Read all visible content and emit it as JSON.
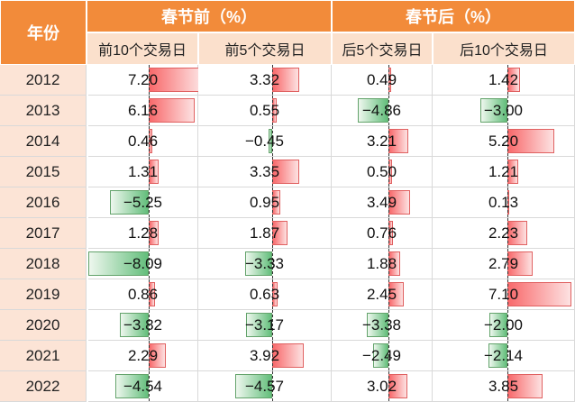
{
  "header": {
    "year_label": "年份",
    "before_group": "春节前（%）",
    "after_group": "春节后（%）",
    "columns": [
      "前10个交易日",
      "前5个交易日",
      "后5个交易日",
      "后10个交易日"
    ]
  },
  "rows": [
    {
      "year": "2012",
      "values": [
        "7.20",
        "3.32",
        "0.49",
        "1.42"
      ]
    },
    {
      "year": "2013",
      "values": [
        "6.16",
        "0.55",
        "−4.86",
        "−3.00"
      ]
    },
    {
      "year": "2014",
      "values": [
        "0.46",
        "−0.45",
        "3.21",
        "5.20"
      ]
    },
    {
      "year": "2015",
      "values": [
        "1.31",
        "3.35",
        "0.50",
        "1.21"
      ]
    },
    {
      "year": "2016",
      "values": [
        "−5.25",
        "0.95",
        "3.49",
        "0.13"
      ]
    },
    {
      "year": "2017",
      "values": [
        "1.28",
        "1.87",
        "0.76",
        "2.23"
      ]
    },
    {
      "year": "2018",
      "values": [
        "−8.09",
        "−3.33",
        "1.88",
        "2.79"
      ]
    },
    {
      "year": "2019",
      "values": [
        "0.86",
        "0.63",
        "2.45",
        "7.10"
      ]
    },
    {
      "year": "2020",
      "values": [
        "−3.82",
        "−3.17",
        "−3.38",
        "−2.00"
      ]
    },
    {
      "year": "2021",
      "values": [
        "2.29",
        "3.92",
        "−2.49",
        "−2.14"
      ]
    },
    {
      "year": "2022",
      "values": [
        "−4.54",
        "−4.57",
        "3.02",
        "3.85"
      ]
    }
  ],
  "colors": {
    "header_bg": "#f28b3a",
    "subheader_bg": "#fbe0cc",
    "year_bg": "#fce4d6",
    "positive_bar": "#f8696b",
    "negative_bar": "#63be7b"
  }
}
